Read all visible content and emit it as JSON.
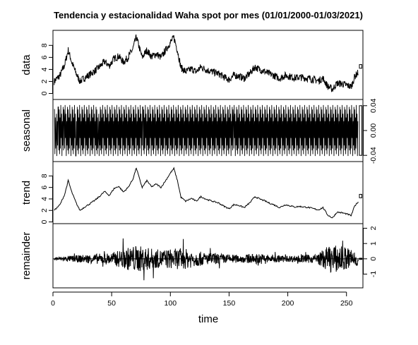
{
  "chart_data": {
    "type": "line",
    "title": "Tendencia y estacionalidad Waha spot por mes (01/01/2000-01/03/2021)",
    "xlabel": "time",
    "xlim": [
      0,
      264
    ],
    "x_ticks": [
      "0",
      "50",
      "100",
      "150",
      "200",
      "250"
    ],
    "panels": [
      {
        "name": "data",
        "ylim": [
          -1.0,
          10.5
        ],
        "tick_side": "left",
        "ticks": [
          "0",
          "2",
          "4",
          "6",
          "8"
        ],
        "anchors": [
          [
            1,
            2.0
          ],
          [
            6,
            3.0
          ],
          [
            10,
            4.8
          ],
          [
            13,
            7.2
          ],
          [
            16,
            5.2
          ],
          [
            20,
            3.2
          ],
          [
            23,
            2.0
          ],
          [
            27,
            2.6
          ],
          [
            31,
            3.1
          ],
          [
            36,
            3.8
          ],
          [
            40,
            4.5
          ],
          [
            44,
            5.3
          ],
          [
            48,
            4.6
          ],
          [
            52,
            5.8
          ],
          [
            56,
            6.2
          ],
          [
            60,
            5.2
          ],
          [
            64,
            6.0
          ],
          [
            68,
            7.4
          ],
          [
            71,
            9.4
          ],
          [
            74,
            7.3
          ],
          [
            76,
            6.0
          ],
          [
            80,
            7.2
          ],
          [
            84,
            6.1
          ],
          [
            88,
            6.6
          ],
          [
            92,
            6.0
          ],
          [
            96,
            7.2
          ],
          [
            100,
            8.5
          ],
          [
            103,
            9.3
          ],
          [
            106,
            7.2
          ],
          [
            109,
            4.3
          ],
          [
            113,
            3.6
          ],
          [
            118,
            4.1
          ],
          [
            122,
            3.6
          ],
          [
            126,
            4.4
          ],
          [
            131,
            3.9
          ],
          [
            136,
            3.6
          ],
          [
            141,
            3.3
          ],
          [
            146,
            2.7
          ],
          [
            150,
            2.3
          ],
          [
            154,
            3.0
          ],
          [
            158,
            2.9
          ],
          [
            163,
            2.5
          ],
          [
            168,
            3.4
          ],
          [
            172,
            4.4
          ],
          [
            176,
            4.0
          ],
          [
            180,
            3.7
          ],
          [
            184,
            3.3
          ],
          [
            188,
            3.0
          ],
          [
            193,
            2.5
          ],
          [
            198,
            3.0
          ],
          [
            202,
            2.8
          ],
          [
            206,
            2.6
          ],
          [
            210,
            2.7
          ],
          [
            214,
            2.6
          ],
          [
            218,
            2.5
          ],
          [
            222,
            2.3
          ],
          [
            226,
            2.1
          ],
          [
            230,
            2.5
          ],
          [
            234,
            1.2
          ],
          [
            238,
            0.7
          ],
          [
            242,
            1.7
          ],
          [
            246,
            1.6
          ],
          [
            250,
            1.4
          ],
          [
            254,
            1.1
          ],
          [
            257,
            2.8
          ],
          [
            260,
            3.5
          ]
        ],
        "noise_amplitude": 0.6,
        "ref_bar": [
          4.2,
          4.8
        ]
      },
      {
        "name": "seasonal",
        "ylim": [
          -0.05,
          0.05
        ],
        "tick_side": "right",
        "ticks": [
          "-0.04",
          "0.00",
          "0.04"
        ],
        "tick_values": [
          -0.04,
          0.0,
          0.04
        ],
        "series_type": "periodic",
        "period": 12,
        "pattern": [
          0.034,
          -0.038,
          0.021,
          -0.029,
          0.041,
          -0.012,
          0.027,
          -0.041,
          0.015,
          -0.024,
          0.038,
          -0.032
        ],
        "x_range": [
          1,
          260
        ],
        "ref_bar": [
          -0.04,
          0.04
        ]
      },
      {
        "name": "trend",
        "ylim": [
          -0.3,
          10.5
        ],
        "tick_side": "left",
        "ticks": [
          "0",
          "2",
          "4",
          "6",
          "8"
        ],
        "anchors": [
          [
            1,
            2.0
          ],
          [
            6,
            3.0
          ],
          [
            10,
            4.8
          ],
          [
            13,
            7.2
          ],
          [
            16,
            5.2
          ],
          [
            20,
            3.2
          ],
          [
            23,
            2.0
          ],
          [
            27,
            2.6
          ],
          [
            31,
            3.1
          ],
          [
            36,
            3.8
          ],
          [
            40,
            4.5
          ],
          [
            44,
            5.3
          ],
          [
            48,
            4.6
          ],
          [
            52,
            5.8
          ],
          [
            56,
            6.2
          ],
          [
            60,
            5.2
          ],
          [
            64,
            6.0
          ],
          [
            68,
            7.4
          ],
          [
            71,
            9.4
          ],
          [
            74,
            7.3
          ],
          [
            76,
            6.0
          ],
          [
            80,
            7.2
          ],
          [
            84,
            6.1
          ],
          [
            88,
            6.6
          ],
          [
            92,
            6.0
          ],
          [
            96,
            7.2
          ],
          [
            100,
            8.5
          ],
          [
            103,
            9.3
          ],
          [
            106,
            7.2
          ],
          [
            109,
            4.3
          ],
          [
            113,
            3.6
          ],
          [
            118,
            4.1
          ],
          [
            122,
            3.6
          ],
          [
            126,
            4.4
          ],
          [
            131,
            3.9
          ],
          [
            136,
            3.6
          ],
          [
            141,
            3.3
          ],
          [
            146,
            2.7
          ],
          [
            150,
            2.3
          ],
          [
            154,
            3.0
          ],
          [
            158,
            2.9
          ],
          [
            163,
            2.5
          ],
          [
            168,
            3.4
          ],
          [
            172,
            4.4
          ],
          [
            176,
            4.0
          ],
          [
            180,
            3.7
          ],
          [
            184,
            3.3
          ],
          [
            188,
            3.0
          ],
          [
            193,
            2.5
          ],
          [
            198,
            3.0
          ],
          [
            202,
            2.8
          ],
          [
            206,
            2.6
          ],
          [
            210,
            2.7
          ],
          [
            214,
            2.6
          ],
          [
            218,
            2.5
          ],
          [
            222,
            2.3
          ],
          [
            226,
            2.1
          ],
          [
            230,
            2.5
          ],
          [
            234,
            1.2
          ],
          [
            238,
            0.7
          ],
          [
            242,
            1.7
          ],
          [
            246,
            1.6
          ],
          [
            250,
            1.4
          ],
          [
            254,
            1.1
          ],
          [
            257,
            2.8
          ],
          [
            260,
            3.5
          ]
        ],
        "noise_amplitude": 0.12,
        "ref_bar": [
          4.2,
          4.8
        ]
      },
      {
        "name": "remainder",
        "ylim": [
          -1.9,
          2.3
        ],
        "tick_side": "right",
        "ticks": [
          "-1",
          "0",
          "1",
          "2"
        ],
        "zero_line": true,
        "series_type": "residual",
        "volatility": [
          [
            1,
            0.12
          ],
          [
            50,
            0.4
          ],
          [
            70,
            0.9
          ],
          [
            90,
            0.6
          ],
          [
            110,
            0.7
          ],
          [
            130,
            0.4
          ],
          [
            160,
            0.25
          ],
          [
            175,
            0.35
          ],
          [
            200,
            0.2
          ],
          [
            225,
            0.3
          ],
          [
            235,
            0.9
          ],
          [
            250,
            0.8
          ],
          [
            260,
            0.5
          ]
        ],
        "ref_bar": [
          -0.04,
          0.04
        ]
      }
    ]
  }
}
